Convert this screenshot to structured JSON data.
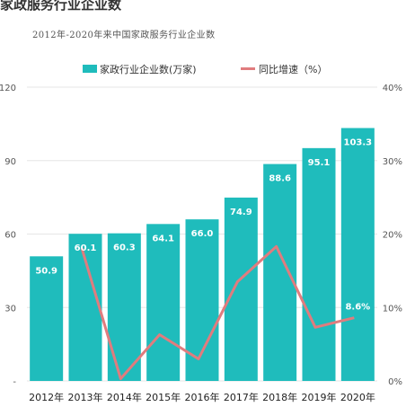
{
  "title": "家政服务行业企业数",
  "subtitle": "2012年-2020年来中国家政服务行业企业数",
  "colors": {
    "bar": "#1fbcbc",
    "line": "#e07c7e"
  },
  "chart_data": {
    "type": "bar",
    "categories": [
      "2012年",
      "2013年",
      "2014年",
      "2015年",
      "2016年",
      "2017年",
      "2018年",
      "2019年",
      "2020年"
    ],
    "series": [
      {
        "name": "家政行业企业数(万家)",
        "type": "bar",
        "axis": "left",
        "values": [
          50.9,
          60.1,
          60.3,
          64.1,
          66.0,
          74.9,
          88.6,
          95.1,
          103.3
        ],
        "labels": [
          "50.9",
          "60.1",
          "60.3",
          "64.1",
          "66.0",
          "74.9",
          "88.6",
          "95.1",
          "103.3"
        ]
      },
      {
        "name": "同比增速（%）",
        "type": "line",
        "axis": "right",
        "values": [
          null,
          18.1,
          0.3,
          6.3,
          3.0,
          13.5,
          18.3,
          7.3,
          8.6
        ],
        "labels": [
          "",
          "",
          "",
          "",
          "",
          "",
          "",
          "",
          "8.6%"
        ]
      }
    ],
    "y_left": {
      "ylim": [
        0,
        120
      ],
      "ticks": [
        "-",
        "30",
        "60",
        "90",
        "120"
      ]
    },
    "y_right": {
      "ylim": [
        0,
        40
      ],
      "ticks": [
        "0%",
        "10%",
        "20%",
        "30%",
        "40%"
      ]
    },
    "legend_position": "top"
  }
}
